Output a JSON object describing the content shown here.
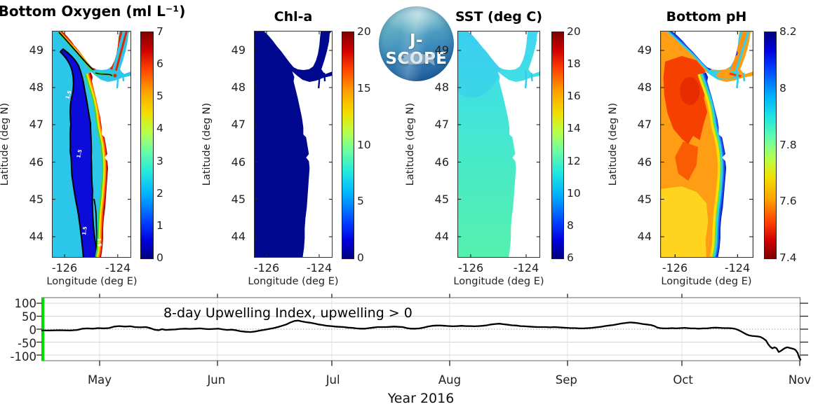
{
  "logo": {
    "text": "J-SCOPE"
  },
  "panels": [
    {
      "title": "Bottom Oxygen (ml L⁻¹)",
      "ylabel": "Latitude (deg N)",
      "xlabel": "Longitude (deg E)",
      "lat_ticks": [
        "49",
        "48",
        "47",
        "46",
        "45",
        "44"
      ],
      "lon_ticks": [
        "-126",
        "-124"
      ],
      "colorbar_ticks": [
        "7",
        "6",
        "5",
        "4",
        "3",
        "2",
        "1",
        "0"
      ],
      "contour_label": "1.5"
    },
    {
      "title": "Chl-a",
      "ylabel": "Latitude (deg N)",
      "xlabel": "Longitude (deg E)",
      "lat_ticks": [
        "49",
        "48",
        "47",
        "46",
        "45",
        "44"
      ],
      "lon_ticks": [
        "-126",
        "-124"
      ],
      "colorbar_ticks": [
        "20",
        "15",
        "10",
        "5",
        "0"
      ]
    },
    {
      "title": "SST (deg C)",
      "ylabel": "Latitude (deg N)",
      "xlabel": "Longitude (deg E)",
      "lat_ticks": [
        "49",
        "48",
        "47",
        "46",
        "45",
        "44"
      ],
      "lon_ticks": [
        "-126",
        "-124"
      ],
      "colorbar_ticks": [
        "20",
        "18",
        "16",
        "14",
        "12",
        "10",
        "8",
        "6"
      ]
    },
    {
      "title": "Bottom pH",
      "ylabel": "Latitude (deg N)",
      "xlabel": "Longitude (deg E)",
      "lat_ticks": [
        "49",
        "48",
        "47",
        "46",
        "45",
        "44"
      ],
      "lon_ticks": [
        "-126",
        "-124"
      ],
      "colorbar_ticks": [
        "8.2",
        "8",
        "7.8",
        "7.6",
        "7.4"
      ]
    }
  ],
  "timeseries": {
    "annotation": "8-day Upwelling Index, upwelling > 0",
    "xlabel": "Year 2016",
    "y_ticks": [
      "100",
      "50",
      "0",
      "-50",
      "-100"
    ],
    "x_ticks": [
      "May",
      "Jun",
      "Jul",
      "Aug",
      "Sep",
      "Oct",
      "Nov"
    ],
    "line_color": "#000000",
    "start_marker_color": "#00dd00",
    "chart_data": {
      "type": "line",
      "title": "8-day Upwelling Index, upwelling > 0",
      "xlabel": "Year 2016",
      "x_range_months": [
        "mid-Apr",
        "Nov"
      ],
      "ylim": [
        -125,
        125
      ],
      "y_gridlines": [
        100,
        50,
        0,
        -50,
        -100
      ],
      "zero_line": "dotted",
      "points": [
        [
          60,
          -5
        ],
        [
          70,
          -5
        ],
        [
          85,
          -4
        ],
        [
          100,
          -5
        ],
        [
          110,
          -3
        ],
        [
          118,
          2
        ],
        [
          125,
          3
        ],
        [
          132,
          2
        ],
        [
          140,
          4
        ],
        [
          148,
          3
        ],
        [
          155,
          4
        ],
        [
          163,
          10
        ],
        [
          170,
          12
        ],
        [
          178,
          10
        ],
        [
          186,
          11
        ],
        [
          192,
          8
        ],
        [
          200,
          7
        ],
        [
          208,
          8
        ],
        [
          214,
          4
        ],
        [
          220,
          -2
        ],
        [
          226,
          -4
        ],
        [
          231,
          0
        ],
        [
          236,
          -3
        ],
        [
          243,
          -2
        ],
        [
          250,
          -1
        ],
        [
          257,
          1
        ],
        [
          264,
          2
        ],
        [
          270,
          1
        ],
        [
          278,
          2
        ],
        [
          285,
          3
        ],
        [
          292,
          1
        ],
        [
          298,
          0
        ],
        [
          305,
          1
        ],
        [
          311,
          2
        ],
        [
          318,
          -1
        ],
        [
          324,
          -3
        ],
        [
          330,
          -2
        ],
        [
          336,
          -4
        ],
        [
          343,
          -8
        ],
        [
          350,
          -10
        ],
        [
          357,
          -11
        ],
        [
          364,
          -9
        ],
        [
          371,
          -5
        ],
        [
          378,
          -2
        ],
        [
          384,
          1
        ],
        [
          390,
          4
        ],
        [
          396,
          8
        ],
        [
          402,
          13
        ],
        [
          408,
          18
        ],
        [
          414,
          26
        ],
        [
          420,
          32
        ],
        [
          425,
          33
        ],
        [
          430,
          30
        ],
        [
          436,
          27
        ],
        [
          442,
          25
        ],
        [
          448,
          22
        ],
        [
          454,
          18
        ],
        [
          460,
          16
        ],
        [
          466,
          13
        ],
        [
          472,
          12
        ],
        [
          478,
          10
        ],
        [
          484,
          9
        ],
        [
          490,
          8
        ],
        [
          496,
          6
        ],
        [
          502,
          5
        ],
        [
          508,
          3
        ],
        [
          514,
          2
        ],
        [
          520,
          2
        ],
        [
          526,
          4
        ],
        [
          532,
          6
        ],
        [
          538,
          8
        ],
        [
          544,
          8
        ],
        [
          550,
          8
        ],
        [
          556,
          9
        ],
        [
          562,
          10
        ],
        [
          568,
          9
        ],
        [
          574,
          8
        ],
        [
          580,
          4
        ],
        [
          586,
          2
        ],
        [
          592,
          2
        ],
        [
          598,
          3
        ],
        [
          604,
          6
        ],
        [
          610,
          10
        ],
        [
          616,
          13
        ],
        [
          622,
          14
        ],
        [
          628,
          14
        ],
        [
          634,
          13
        ],
        [
          640,
          12
        ],
        [
          646,
          11
        ],
        [
          652,
          12
        ],
        [
          658,
          13
        ],
        [
          664,
          12
        ],
        [
          670,
          12
        ],
        [
          676,
          11
        ],
        [
          682,
          12
        ],
        [
          688,
          13
        ],
        [
          694,
          15
        ],
        [
          700,
          18
        ],
        [
          706,
          20
        ],
        [
          712,
          21
        ],
        [
          718,
          19
        ],
        [
          724,
          17
        ],
        [
          730,
          15
        ],
        [
          736,
          14
        ],
        [
          742,
          12
        ],
        [
          748,
          11
        ],
        [
          754,
          10
        ],
        [
          760,
          9
        ],
        [
          766,
          8
        ],
        [
          772,
          8
        ],
        [
          778,
          8
        ],
        [
          784,
          7
        ],
        [
          790,
          8
        ],
        [
          796,
          7
        ],
        [
          802,
          6
        ],
        [
          808,
          5
        ],
        [
          814,
          4
        ],
        [
          820,
          4
        ],
        [
          826,
          3
        ],
        [
          832,
          3
        ],
        [
          838,
          4
        ],
        [
          844,
          5
        ],
        [
          850,
          7
        ],
        [
          856,
          9
        ],
        [
          862,
          12
        ],
        [
          868,
          14
        ],
        [
          874,
          16
        ],
        [
          880,
          19
        ],
        [
          886,
          22
        ],
        [
          892,
          24
        ],
        [
          898,
          26
        ],
        [
          904,
          25
        ],
        [
          910,
          23
        ],
        [
          916,
          20
        ],
        [
          922,
          18
        ],
        [
          928,
          16
        ],
        [
          933,
          12
        ],
        [
          937,
          6
        ],
        [
          941,
          4
        ],
        [
          946,
          3
        ],
        [
          952,
          3
        ],
        [
          958,
          4
        ],
        [
          964,
          3
        ],
        [
          970,
          4
        ],
        [
          976,
          5
        ],
        [
          980,
          4
        ],
        [
          985,
          3
        ],
        [
          990,
          3
        ],
        [
          996,
          2
        ],
        [
          1002,
          3
        ],
        [
          1008,
          3
        ],
        [
          1014,
          5
        ],
        [
          1020,
          6
        ],
        [
          1026,
          5
        ],
        [
          1032,
          4
        ],
        [
          1038,
          4
        ],
        [
          1044,
          3
        ],
        [
          1048,
          1
        ],
        [
          1052,
          -3
        ],
        [
          1056,
          -8
        ],
        [
          1060,
          -14
        ],
        [
          1064,
          -20
        ],
        [
          1068,
          -24
        ],
        [
          1072,
          -26
        ],
        [
          1076,
          -27
        ],
        [
          1080,
          -28
        ],
        [
          1084,
          -30
        ],
        [
          1088,
          -36
        ],
        [
          1092,
          -44
        ],
        [
          1095,
          -58
        ],
        [
          1098,
          -68
        ],
        [
          1101,
          -74
        ],
        [
          1104,
          -70
        ],
        [
          1107,
          -74
        ],
        [
          1110,
          -88
        ],
        [
          1113,
          -84
        ],
        [
          1116,
          -78
        ],
        [
          1119,
          -73
        ],
        [
          1122,
          -70
        ],
        [
          1125,
          -72
        ],
        [
          1128,
          -74
        ],
        [
          1131,
          -76
        ],
        [
          1134,
          -80
        ],
        [
          1137,
          -92
        ],
        [
          1139,
          -108
        ],
        [
          1141,
          -118
        ]
      ]
    }
  },
  "chart_data": [
    {
      "type": "heatmap",
      "title": "Bottom Oxygen (ml L⁻¹)",
      "xlabel": "Longitude (deg E)",
      "ylabel": "Latitude (deg N)",
      "x_ticks": [
        -126,
        -124
      ],
      "y_ticks": [
        49,
        48,
        47,
        46,
        45,
        44
      ],
      "colorbar_range": [
        0,
        7
      ],
      "colorbar_ticks": [
        0,
        1,
        2,
        3,
        4,
        5,
        6,
        7
      ],
      "colormap": "jet",
      "contour_level": 1.5,
      "field_summary": "hypoxic (<1.5) dark-blue band over mid-shelf outlined by black 1.5 contour; 2-3 offshore; 4-7 narrow band at coast"
    },
    {
      "type": "heatmap",
      "title": "Chl-a",
      "xlabel": "Longitude (deg E)",
      "ylabel": "Latitude (deg N)",
      "x_ticks": [
        -126,
        -124
      ],
      "y_ticks": [
        49,
        48,
        47,
        46,
        45,
        44
      ],
      "colorbar_range": [
        0,
        20
      ],
      "colorbar_ticks": [
        0,
        5,
        10,
        15,
        20
      ],
      "colormap": "jet",
      "field_summary": "near-uniform low chlorophyll (~0-1) everywhere"
    },
    {
      "type": "heatmap",
      "title": "SST (deg C)",
      "xlabel": "Longitude (deg E)",
      "ylabel": "Latitude (deg N)",
      "x_ticks": [
        -126,
        -124
      ],
      "y_ticks": [
        49,
        48,
        47,
        46,
        45,
        44
      ],
      "colorbar_range": [
        6,
        20
      ],
      "colorbar_ticks": [
        6,
        8,
        10,
        12,
        14,
        16,
        18,
        20
      ],
      "colormap": "jet",
      "field_summary": "cyan ~11 deg C in north grading to ~12.5-13 deg C aquamarine in south"
    },
    {
      "type": "heatmap",
      "title": "Bottom pH",
      "xlabel": "Longitude (deg E)",
      "ylabel": "Latitude (deg N)",
      "x_ticks": [
        -126,
        -124
      ],
      "y_ticks": [
        49,
        48,
        47,
        46,
        45,
        44
      ],
      "colorbar_range": [
        7.4,
        8.2
      ],
      "colorbar_ticks": [
        7.4,
        7.6,
        7.8,
        8.0,
        8.2
      ],
      "colormap": "jet-reversed",
      "field_summary": "low pH 7.5-7.65 (orange/red) offshore, ~7.7 (yellow) in south, high pH 8.0-8.2 (cyan/blue) band along coast"
    }
  ]
}
